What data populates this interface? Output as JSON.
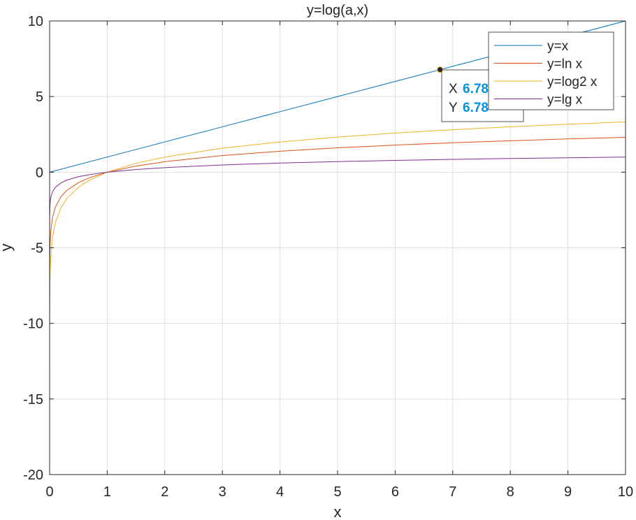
{
  "chart_data": {
    "type": "line",
    "title": "y=log(a,x)",
    "xlabel": "x",
    "ylabel": "y",
    "xlim": [
      0,
      10
    ],
    "ylim": [
      -20,
      10
    ],
    "x_ticks": [
      0,
      1,
      2,
      3,
      4,
      5,
      6,
      7,
      8,
      9,
      10
    ],
    "y_ticks": [
      10,
      5,
      0,
      -5,
      -10,
      -15,
      -20
    ],
    "x_tick_labels": [
      "0",
      "1",
      "2",
      "3",
      "4",
      "5",
      "6",
      "7",
      "8",
      "9",
      "10"
    ],
    "y_tick_labels": [
      "10",
      "5",
      "0",
      "-5",
      "-10",
      "-15",
      "-20"
    ],
    "grid": true,
    "legend_position": "top-right",
    "series": [
      {
        "name": "y=x",
        "color": "#0072BD",
        "x": [
          0,
          1,
          2,
          3,
          4,
          5,
          6,
          7,
          8,
          9,
          10
        ],
        "y": [
          0,
          1,
          2,
          3,
          4,
          5,
          6,
          7,
          8,
          9,
          10
        ]
      },
      {
        "name": "y=ln x",
        "color": "#D95319",
        "x": [
          1e-05,
          0.0001,
          0.001,
          0.005,
          0.01,
          0.02,
          0.05,
          0.1,
          0.2,
          0.3,
          0.5,
          0.7,
          1,
          1.5,
          2,
          3,
          4,
          5,
          6,
          7,
          8,
          9,
          10
        ],
        "y": [
          -11.513,
          -9.21,
          -6.908,
          -5.298,
          -4.605,
          -3.912,
          -2.996,
          -2.303,
          -1.609,
          -1.204,
          -0.693,
          -0.357,
          0,
          0.405,
          0.693,
          1.099,
          1.386,
          1.609,
          1.792,
          1.946,
          2.079,
          2.197,
          2.303
        ]
      },
      {
        "name": "y=log2 x",
        "color": "#EDB120",
        "x": [
          1e-06,
          1e-05,
          0.0001,
          0.001,
          0.005,
          0.01,
          0.02,
          0.05,
          0.1,
          0.2,
          0.3,
          0.5,
          0.7,
          1,
          1.5,
          2,
          3,
          4,
          5,
          6,
          7,
          8,
          9,
          10
        ],
        "y": [
          -19.932,
          -16.61,
          -13.288,
          -9.966,
          -7.644,
          -6.644,
          -5.644,
          -4.322,
          -3.322,
          -2.322,
          -1.737,
          -1,
          -0.515,
          0,
          0.585,
          1,
          1.585,
          2,
          2.322,
          2.585,
          2.807,
          3,
          3.17,
          3.322
        ]
      },
      {
        "name": "y=lg x",
        "color": "#7E2F8E",
        "x": [
          1e-05,
          0.0001,
          0.001,
          0.005,
          0.01,
          0.02,
          0.05,
          0.1,
          0.2,
          0.3,
          0.5,
          0.7,
          1,
          1.5,
          2,
          3,
          4,
          5,
          6,
          7,
          8,
          9,
          10
        ],
        "y": [
          -5,
          -4,
          -3,
          -2.301,
          -2,
          -1.699,
          -1.301,
          -1,
          -0.699,
          -0.523,
          -0.301,
          -0.155,
          0,
          0.176,
          0.301,
          0.477,
          0.602,
          0.699,
          0.778,
          0.845,
          0.903,
          0.954,
          1
        ]
      }
    ],
    "datatip": {
      "x": 6.78,
      "y": 6.78,
      "x_label": "X",
      "y_label": "Y",
      "x_text": "6.78",
      "y_text": "6.78",
      "value_color": "#0092E6"
    }
  }
}
